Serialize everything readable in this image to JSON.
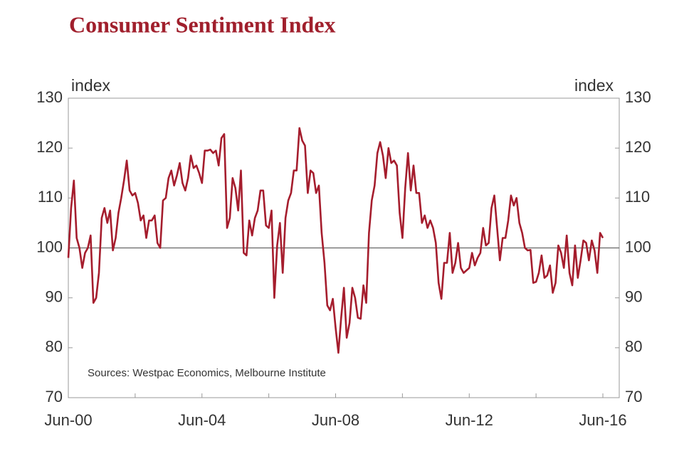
{
  "chart_data": {
    "type": "line",
    "title": "Consumer Sentiment Index",
    "y_label": "index",
    "y2_label": "index",
    "annotation": "Sources: Westpac Economics, Melbourne Institute",
    "categories": [
      "Jun-00",
      null,
      null,
      null,
      null,
      null,
      null,
      null,
      null,
      null,
      null,
      null,
      null,
      null,
      null,
      null,
      null,
      null,
      null,
      null,
      null,
      null,
      null,
      null,
      null,
      null,
      null,
      null,
      null,
      null,
      null,
      null,
      null,
      null,
      null,
      null,
      null,
      null,
      null,
      null,
      null,
      null,
      null,
      null,
      null,
      null,
      null,
      null,
      "Jun-04",
      null,
      null,
      null,
      null,
      null,
      null,
      null,
      null,
      null,
      null,
      null,
      null,
      null,
      null,
      null,
      null,
      null,
      null,
      null,
      null,
      null,
      null,
      null,
      null,
      null,
      null,
      null,
      null,
      null,
      null,
      null,
      null,
      null,
      null,
      null,
      null,
      null,
      null,
      null,
      null,
      null,
      null,
      null,
      null,
      null,
      null,
      null,
      "Jun-08",
      null,
      null,
      null,
      null,
      null,
      null,
      null,
      null,
      null,
      null,
      null,
      null,
      null,
      null,
      null,
      null,
      null,
      null,
      null,
      null,
      null,
      null,
      null,
      null,
      null,
      null,
      null,
      null,
      null,
      null,
      null,
      null,
      null,
      null,
      null,
      null,
      null,
      null,
      null,
      null,
      null,
      null,
      null,
      null,
      null,
      null,
      null,
      "Jun-12",
      null,
      null,
      null,
      null,
      null,
      null,
      null,
      null,
      null,
      null,
      null,
      null,
      null,
      null,
      null,
      null,
      null,
      null,
      null,
      null,
      null,
      null,
      null,
      null,
      null,
      null,
      null,
      null,
      null,
      null,
      null,
      null,
      null,
      null,
      null,
      null,
      null,
      null,
      null,
      null,
      null,
      null,
      null,
      null,
      null,
      null,
      null,
      "Jun-16"
    ],
    "series": [
      {
        "name": "Consumer Sentiment Index",
        "color": "#a51d2d",
        "values": [
          98,
          108,
          113.5,
          102,
          100,
          96,
          99,
          100,
          102.5,
          89,
          90,
          95,
          106,
          108,
          105,
          107.5,
          99.5,
          102,
          107,
          110,
          113.5,
          117.5,
          111.5,
          110.5,
          111,
          109,
          105.5,
          106.5,
          102,
          105.5,
          105.5,
          106.5,
          101,
          100,
          109.5,
          110,
          114,
          115.5,
          112.5,
          114.5,
          117,
          113,
          111.5,
          114,
          118.5,
          116,
          116.5,
          115,
          113,
          119.5,
          119.5,
          119.7,
          119,
          119.5,
          116.5,
          122,
          122.8,
          104,
          106,
          114,
          112,
          107.5,
          115.5,
          99,
          98.5,
          105.5,
          102.5,
          106,
          107.5,
          111.5,
          111.5,
          104.5,
          104,
          107.5,
          90,
          100.5,
          105,
          95,
          106,
          109.5,
          111,
          115.5,
          115.5,
          124,
          121.5,
          120.5,
          111,
          115.5,
          115,
          111,
          112.5,
          103,
          97,
          88.5,
          87.5,
          89.8,
          84,
          79,
          86,
          92,
          82,
          85,
          92,
          90,
          86,
          85.8,
          92.5,
          89,
          103,
          109.5,
          112.5,
          119,
          121.2,
          118.5,
          114,
          120,
          117,
          117.5,
          116.5,
          107,
          102,
          112,
          119,
          111.5,
          116.5,
          111,
          111,
          105,
          106.5,
          104,
          105.5,
          104,
          101,
          93,
          89.8,
          97,
          97,
          103,
          95,
          97,
          101,
          96,
          95,
          95.5,
          96,
          99,
          96.5,
          98,
          99,
          104,
          100.5,
          101,
          108,
          110.5,
          104,
          97.5,
          102,
          102,
          105.5,
          110.5,
          108.5,
          110,
          105,
          103,
          100,
          99.5,
          99.6,
          93,
          93.2,
          95,
          98.5,
          94,
          94.5,
          96.5,
          91,
          93,
          100.5,
          99,
          96,
          102.5,
          95,
          92.5,
          100.5,
          94,
          97.5,
          101.5,
          101,
          97.5,
          101.5,
          99.5,
          95,
          103,
          102
        ]
      }
    ],
    "ylim": [
      70,
      130
    ],
    "yticks": [
      70,
      80,
      90,
      100,
      110,
      120,
      130
    ],
    "y2lim": [
      70,
      130
    ],
    "y2ticks": [
      70,
      80,
      90,
      100,
      110,
      120,
      130
    ],
    "hline": 100,
    "grid": false
  }
}
